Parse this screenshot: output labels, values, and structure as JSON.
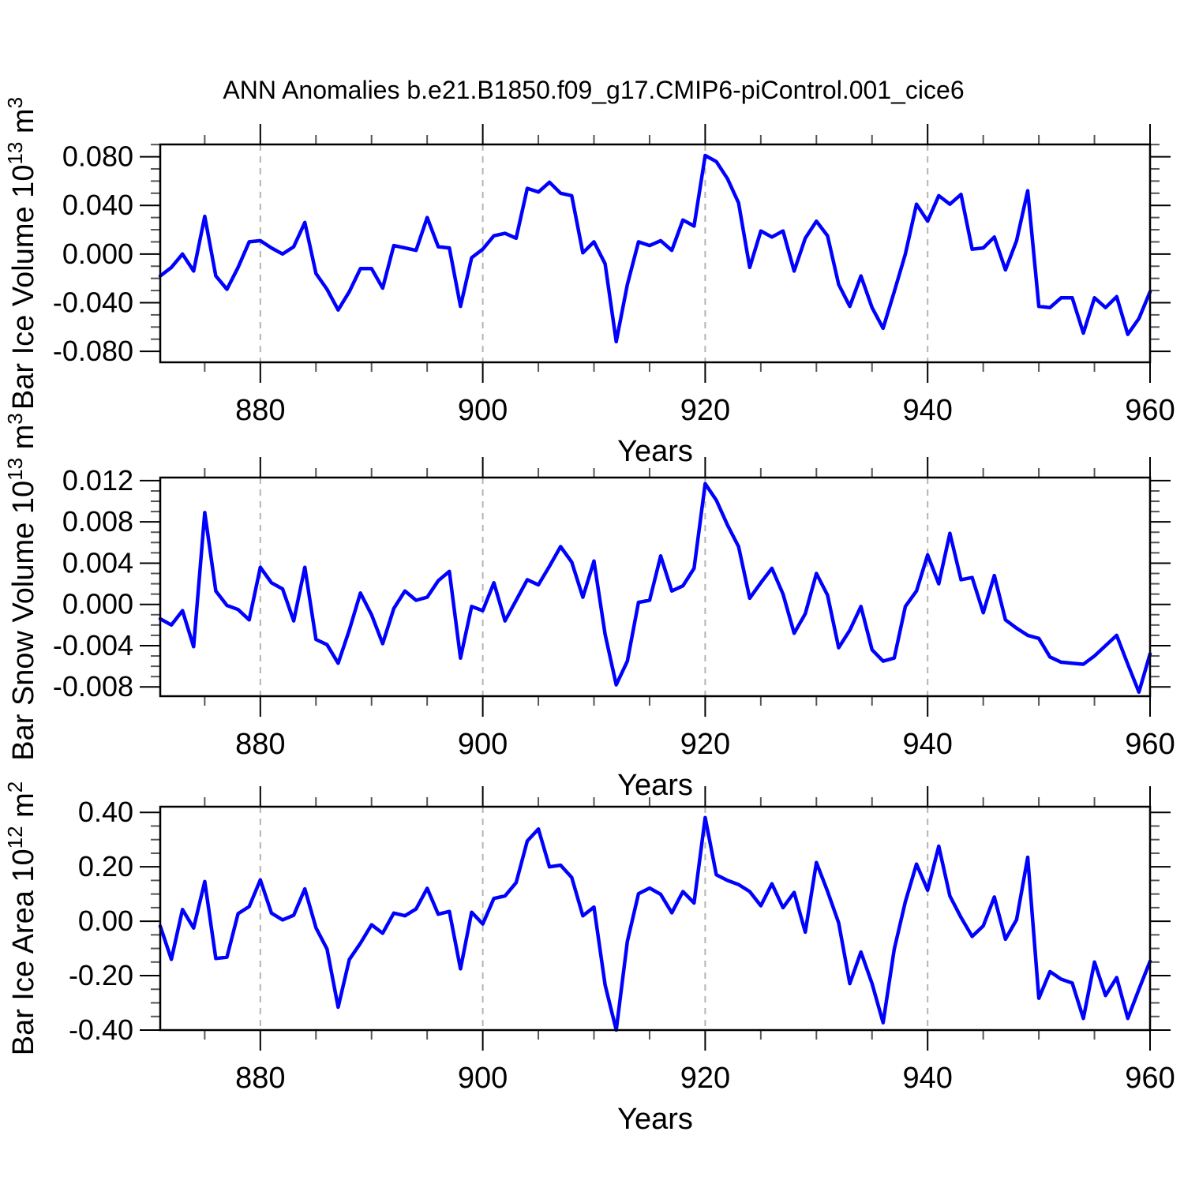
{
  "title": "ANN Anomalies b.e21.B1850.f09_g17.CMIP6-piControl.001_cice6",
  "styles": {
    "line_color": "#0000ff",
    "grid_color": "#b4b4b4",
    "axis_color": "#000000",
    "minor_tick_color": "#555555"
  },
  "chart_data": [
    {
      "type": "line",
      "ylabel_text": "Bar Ice Volume 10^13 m^3",
      "ylabel_parts": [
        {
          "t": "Bar Ice Volume 10"
        },
        {
          "t": "13",
          "sup": true
        },
        {
          "t": " m"
        },
        {
          "t": "3",
          "sup": true
        }
      ],
      "xlabel": "Years",
      "x": {
        "start": 871,
        "end": 960,
        "step": 1
      },
      "x_major_ticks": [
        880,
        900,
        920,
        940,
        960
      ],
      "x_minor_step": 5,
      "x_gridlines": [
        880,
        900,
        920,
        940
      ],
      "ylim": [
        -0.089,
        0.0901
      ],
      "y_ticks": [
        {
          "v": 0.08,
          "label": "0.080"
        },
        {
          "v": 0.04,
          "label": "0.040"
        },
        {
          "v": 0.0,
          "label": "0.000"
        },
        {
          "v": -0.04,
          "label": "-0.040"
        },
        {
          "v": -0.08,
          "label": "-0.080"
        }
      ],
      "y_minor_step": 0.01,
      "values": [
        -0.018,
        -0.011,
        0.0,
        -0.014,
        0.031,
        -0.018,
        -0.029,
        -0.011,
        0.01,
        0.011,
        0.005,
        0.0,
        0.006,
        0.026,
        -0.016,
        -0.029,
        -0.046,
        -0.031,
        -0.012,
        -0.012,
        -0.028,
        0.007,
        0.005,
        0.003,
        0.03,
        0.006,
        0.005,
        -0.043,
        -0.003,
        0.004,
        0.015,
        0.017,
        0.013,
        0.054,
        0.051,
        0.059,
        0.05,
        0.048,
        0.001,
        0.01,
        -0.008,
        -0.072,
        -0.025,
        0.01,
        0.007,
        0.011,
        0.003,
        0.028,
        0.023,
        0.081,
        0.076,
        0.062,
        0.042,
        -0.011,
        0.019,
        0.014,
        0.019,
        -0.014,
        0.013,
        0.027,
        0.015,
        -0.025,
        -0.043,
        -0.018,
        -0.044,
        -0.061,
        -0.031,
        0.0,
        0.041,
        0.027,
        0.048,
        0.041,
        0.049,
        0.004,
        0.005,
        0.014,
        -0.013,
        0.011,
        0.052,
        -0.043,
        -0.044,
        -0.036,
        -0.036,
        -0.065,
        -0.036,
        -0.044,
        -0.035,
        -0.066,
        -0.053,
        -0.031
      ]
    },
    {
      "type": "line",
      "ylabel_text": "Bar Snow Volume 10^13 m^3",
      "ylabel_parts": [
        {
          "t": "Bar Snow Volume 10"
        },
        {
          "t": "13",
          "sup": true
        },
        {
          "t": " m"
        },
        {
          "t": "3",
          "sup": true
        }
      ],
      "xlabel": "Years",
      "x": {
        "start": 871,
        "end": 960,
        "step": 1
      },
      "x_major_ticks": [
        880,
        900,
        920,
        940,
        960
      ],
      "x_minor_step": 5,
      "x_gridlines": [
        880,
        900,
        920,
        940
      ],
      "ylim": [
        -0.0089,
        0.0123
      ],
      "y_ticks": [
        {
          "v": 0.012,
          "label": "0.012"
        },
        {
          "v": 0.008,
          "label": "0.008"
        },
        {
          "v": 0.004,
          "label": "0.004"
        },
        {
          "v": 0.0,
          "label": "0.000"
        },
        {
          "v": -0.004,
          "label": "-0.004"
        },
        {
          "v": -0.008,
          "label": "-0.008"
        }
      ],
      "y_minor_step": 0.001,
      "values": [
        -0.0014,
        -0.002,
        -0.0006,
        -0.0041,
        0.0089,
        0.0013,
        -0.0001,
        -0.0005,
        -0.0015,
        0.0036,
        0.0021,
        0.0015,
        -0.0016,
        0.0036,
        -0.0034,
        -0.0039,
        -0.0057,
        -0.0025,
        0.0011,
        -0.001,
        -0.0038,
        -0.0004,
        0.0013,
        0.0004,
        0.0007,
        0.0023,
        0.0032,
        -0.0052,
        -0.0002,
        -0.0006,
        0.0021,
        -0.0016,
        0.0004,
        0.0024,
        0.0019,
        0.0037,
        0.0056,
        0.0041,
        0.0007,
        0.0042,
        -0.0029,
        -0.0078,
        -0.0055,
        0.0002,
        0.0004,
        0.0047,
        0.0013,
        0.0018,
        0.0035,
        0.0117,
        0.0101,
        0.0077,
        0.0056,
        0.0006,
        0.0021,
        0.0035,
        0.001,
        -0.0028,
        -0.0009,
        0.003,
        0.0009,
        -0.0042,
        -0.0025,
        -0.0002,
        -0.0044,
        -0.0055,
        -0.0052,
        -0.0002,
        0.0013,
        0.0048,
        0.002,
        0.0069,
        0.0024,
        0.0026,
        -0.0008,
        0.0028,
        -0.0015,
        -0.0023,
        -0.003,
        -0.0033,
        -0.0051,
        -0.0056,
        -0.0057,
        -0.0058,
        -0.005,
        -0.004,
        -0.003,
        -0.0058,
        -0.0085,
        -0.0048
      ]
    },
    {
      "type": "line",
      "ylabel_text": "Bar Ice Area 10^12 m^2",
      "ylabel_parts": [
        {
          "t": "Bar Ice Area 10"
        },
        {
          "t": "12",
          "sup": true
        },
        {
          "t": " m"
        },
        {
          "t": "2",
          "sup": true
        }
      ],
      "xlabel": "Years",
      "x": {
        "start": 871,
        "end": 960,
        "step": 1
      },
      "x_major_ticks": [
        880,
        900,
        920,
        940,
        960
      ],
      "x_minor_step": 5,
      "x_gridlines": [
        880,
        900,
        920,
        940
      ],
      "ylim": [
        -0.4,
        0.421
      ],
      "y_ticks": [
        {
          "v": 0.4,
          "label": "0.40"
        },
        {
          "v": 0.2,
          "label": "0.20"
        },
        {
          "v": 0.0,
          "label": "0.00"
        },
        {
          "v": -0.2,
          "label": "-0.20"
        },
        {
          "v": -0.4,
          "label": "-0.40"
        }
      ],
      "y_minor_step": 0.05,
      "values": [
        -0.018,
        -0.14,
        0.043,
        -0.025,
        0.146,
        -0.137,
        -0.132,
        0.028,
        0.054,
        0.152,
        0.03,
        0.005,
        0.022,
        0.119,
        -0.024,
        -0.102,
        -0.316,
        -0.141,
        -0.081,
        -0.013,
        -0.044,
        0.03,
        0.02,
        0.045,
        0.121,
        0.026,
        0.036,
        -0.175,
        0.033,
        -0.01,
        0.084,
        0.093,
        0.142,
        0.295,
        0.339,
        0.2,
        0.206,
        0.161,
        0.02,
        0.052,
        -0.234,
        -0.4,
        -0.074,
        0.101,
        0.122,
        0.099,
        0.031,
        0.109,
        0.067,
        0.381,
        0.171,
        0.15,
        0.135,
        0.109,
        0.057,
        0.138,
        0.05,
        0.106,
        -0.04,
        0.216,
        0.11,
        -0.006,
        -0.229,
        -0.113,
        -0.229,
        -0.373,
        -0.103,
        0.072,
        0.21,
        0.114,
        0.276,
        0.093,
        0.014,
        -0.056,
        -0.017,
        0.089,
        -0.066,
        0.006,
        0.235,
        -0.283,
        -0.185,
        -0.213,
        -0.227,
        -0.357,
        -0.15,
        -0.273,
        -0.207,
        -0.357,
        -0.25,
        -0.147
      ]
    }
  ]
}
